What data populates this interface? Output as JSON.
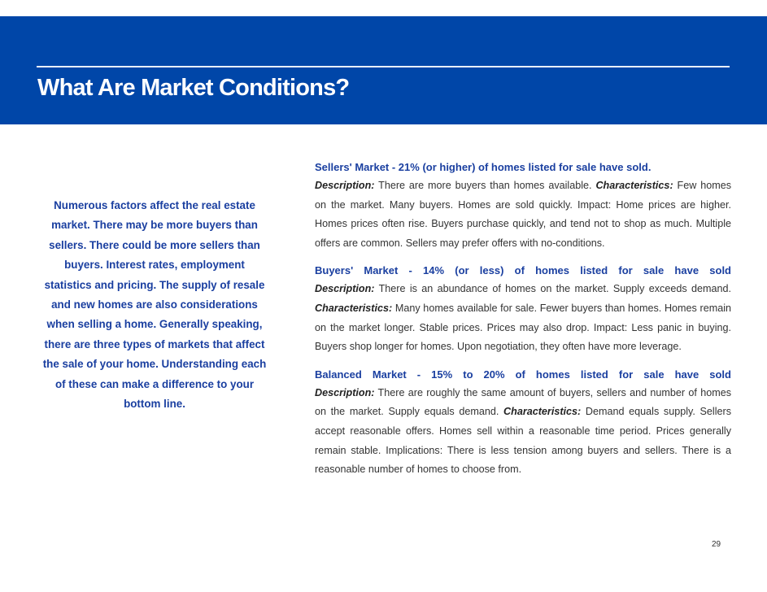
{
  "header": {
    "title": "What Are Market Conditions?"
  },
  "intro": "Numerous factors affect the real estate market. There may be more buyers than sellers. There could be more sellers than buyers. Interest rates, employment statistics and pricing. The supply of resale and new homes are also considerations when selling a home. Generally speaking, there are three types of markets that affect the sale of your home. Understanding each of these can make a difference to your bottom line.",
  "sections": [
    {
      "heading": "Sellers' Market - 21% (or higher) of homes listed for sale have sold.",
      "desc_label": "Description:",
      "desc": " There are more buyers than homes available. ",
      "char_label": "Characteristics:",
      "char": " Few homes on the market. Many buyers. Homes are sold quickly. Impact: Home prices are higher. Homes prices often rise. Buyers purchase quickly, and tend not to shop as much. Multiple offers are common. Sellers may prefer offers with no-conditions."
    },
    {
      "heading": "Buyers' Market - 14% (or less) of homes listed for sale have sold",
      "desc_label": "Description:",
      "desc": " There is an abundance of homes on the market. Supply exceeds demand. ",
      "char_label": "Characteristics:",
      "char": " Many homes available for sale. Fewer buyers than homes. Homes remain on the market longer. Stable prices. Prices may also drop. Impact: Less panic in buying. Buyers shop longer for homes. Upon negotiation, they often have more leverage."
    },
    {
      "heading": "Balanced Market - 15% to 20% of homes listed for sale have sold",
      "desc_label": "Description:",
      "desc": " There are roughly the same amount of buyers, sellers and number of homes on the market. Supply equals demand. ",
      "char_label": "Characteristics:",
      "char": " Demand equals supply. Sellers accept reasonable offers. Homes sell within a reasonable time period. Prices generally remain stable. Implications: There is less tension among buyers and sellers. There is a reasonable number of homes to choose from."
    }
  ],
  "page_number": "29",
  "colors": {
    "banner": "#0046a8",
    "accent_text": "#1a3fa0"
  }
}
